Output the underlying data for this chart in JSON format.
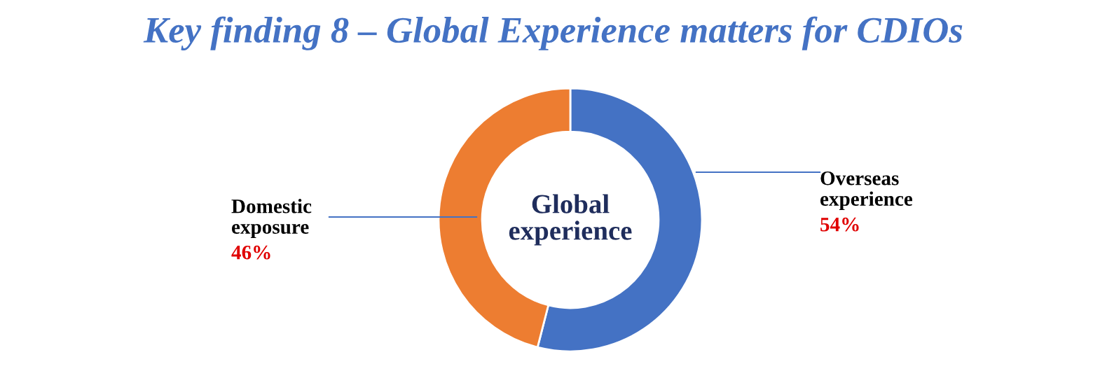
{
  "chart_data": {
    "type": "donut",
    "title": "Key finding 8 – Global Experience matters for CDIOs",
    "categories": [
      "Overseas experience",
      "Domestic exposure"
    ],
    "values": [
      54,
      46
    ],
    "colors": [
      "#4472c4",
      "#ed7d31"
    ],
    "value_labels": [
      "54%",
      "46%"
    ],
    "annotations": [
      "Global experience"
    ],
    "legend": false
  }
}
